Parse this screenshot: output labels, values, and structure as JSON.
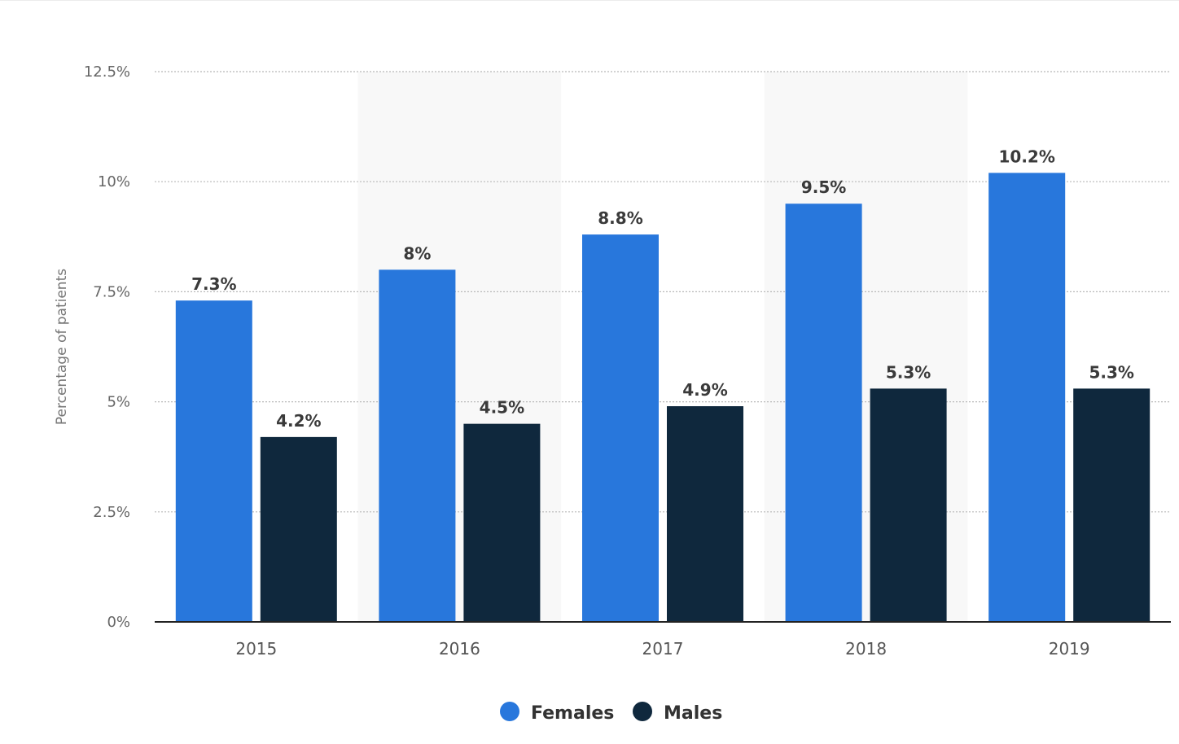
{
  "chart_data": {
    "type": "bar",
    "title": "",
    "xlabel": "",
    "ylabel": "Percentage of patients",
    "categories": [
      "2015",
      "2016",
      "2017",
      "2018",
      "2019"
    ],
    "series": [
      {
        "name": "Females",
        "color": "#2877dc",
        "values": [
          7.3,
          8,
          8.8,
          9.5,
          10.2
        ],
        "labels": [
          "7.3%",
          "8%",
          "8.8%",
          "9.5%",
          "10.2%"
        ]
      },
      {
        "name": "Males",
        "color": "#0f283d",
        "values": [
          4.2,
          4.5,
          4.9,
          5.3,
          5.3
        ],
        "labels": [
          "4.2%",
          "4.5%",
          "4.9%",
          "5.3%",
          "5.3%"
        ]
      }
    ],
    "ylim": [
      0,
      12.5
    ],
    "yticks": [
      0,
      2.5,
      5,
      7.5,
      10,
      12.5
    ],
    "ytick_labels": [
      "0%",
      "2.5%",
      "5%",
      "7.5%",
      "10%",
      "12.5%"
    ],
    "grid": true,
    "legend": "bottom-center"
  }
}
